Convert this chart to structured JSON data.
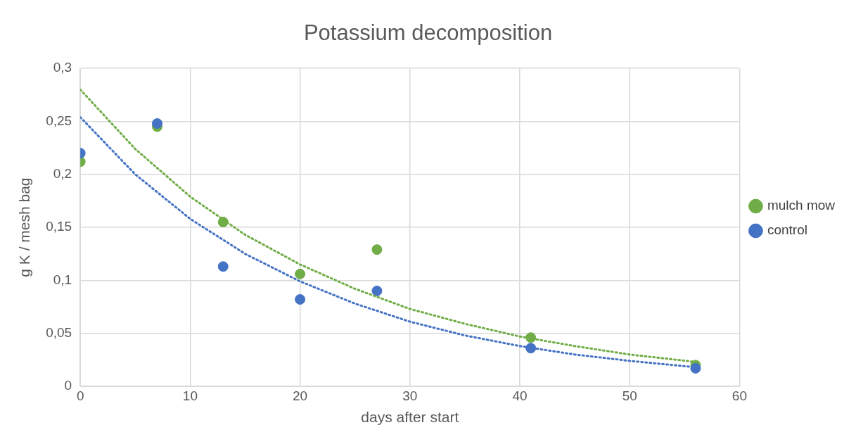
{
  "chart_data": {
    "type": "scatter",
    "title": "Potassium decomposition",
    "xlabel": "days after start",
    "ylabel": "g K / mesh bag",
    "xlim": [
      0,
      60
    ],
    "xticks": [
      0,
      10,
      20,
      30,
      40,
      50,
      60
    ],
    "ylim": [
      0,
      0.3
    ],
    "yticks": [
      0,
      {
        "value": 0.05,
        "label": "0,05"
      },
      {
        "value": 0.1,
        "label": "0,1"
      },
      {
        "value": 0.15,
        "label": "0,15"
      },
      {
        "value": 0.2,
        "label": "0,2"
      },
      {
        "value": 0.25,
        "label": "0,25"
      },
      {
        "value": 0.3,
        "label": "0,3"
      }
    ],
    "grid": true,
    "legend": "right",
    "marker": "circle",
    "series": [
      {
        "name": "mulch mow",
        "color": "#70ad47",
        "x": [
          0,
          7,
          13,
          20,
          27,
          41,
          56
        ],
        "values": [
          0.212,
          0.245,
          0.155,
          0.106,
          0.129,
          0.046,
          0.02
        ]
      },
      {
        "name": "control",
        "color": "#4472c4",
        "x": [
          0,
          7,
          13,
          20,
          27,
          41,
          56
        ],
        "values": [
          0.22,
          0.248,
          0.113,
          0.082,
          0.09,
          0.036,
          0.017
        ]
      },
      {
        "type": "line",
        "marker": "none",
        "line_style": "dotted",
        "color": "#70ad47",
        "x": [
          0,
          5,
          10,
          15,
          20,
          25,
          30,
          35,
          40,
          45,
          50,
          56
        ],
        "values": [
          0.28,
          0.224,
          0.179,
          0.143,
          0.115,
          0.092,
          0.073,
          0.059,
          0.047,
          0.038,
          0.03,
          0.023
        ]
      },
      {
        "type": "line",
        "marker": "none",
        "line_style": "dotted",
        "color": "#4472c4",
        "x": [
          0,
          5,
          10,
          15,
          20,
          25,
          30,
          35,
          40,
          45,
          50,
          56
        ],
        "values": [
          0.254,
          0.2,
          0.158,
          0.125,
          0.099,
          0.078,
          0.061,
          0.048,
          0.038,
          0.03,
          0.024,
          0.018
        ]
      }
    ]
  }
}
